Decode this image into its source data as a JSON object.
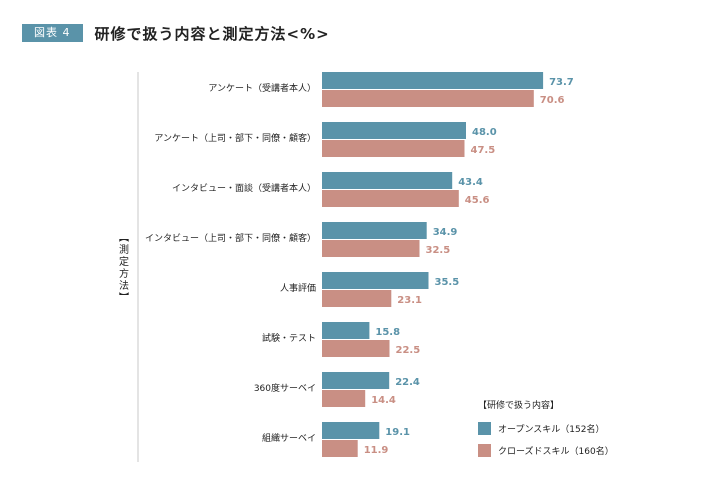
{
  "header": {
    "figure_label": "図表 4",
    "title": "研修で扱う内容と測定方法<%>"
  },
  "colors": {
    "series1": "#5a93a9",
    "series2": "#c98f84",
    "axis": "#c8c8c8"
  },
  "chart_data": {
    "type": "bar",
    "orientation": "horizontal",
    "title": "研修で扱う内容と測定方法<%>",
    "ylabel": "【測定方法】",
    "categories": [
      "アンケート（受講者本人）",
      "アンケート（上司・部下・同僚・顧客）",
      "インタビュー・面談（受講者本人）",
      "インタビュー（上司・部下・同僚・顧客）",
      "人事評価",
      "試験・テスト",
      "360度サーベイ",
      "組織サーベイ"
    ],
    "series": [
      {
        "name": "オープンスキル（152名）",
        "values": [
          73.7,
          48.0,
          43.4,
          34.9,
          35.5,
          15.8,
          22.4,
          19.1
        ]
      },
      {
        "name": "クローズドスキル（160名）",
        "values": [
          70.6,
          47.5,
          45.6,
          32.5,
          23.1,
          22.5,
          14.4,
          11.9
        ]
      }
    ],
    "value_labels": [
      [
        "73.7",
        "48.0",
        "43.4",
        "34.9",
        "35.5",
        "15.8",
        "22.4",
        "19.1"
      ],
      [
        "70.6",
        "47.5",
        "45.6",
        "32.5",
        "23.1",
        "22.5",
        "14.4",
        "11.9"
      ]
    ],
    "legend_title": "【研修で扱う内容】",
    "legend_position": "bottom-right",
    "xlim": [
      0,
      100
    ],
    "grid": false
  }
}
